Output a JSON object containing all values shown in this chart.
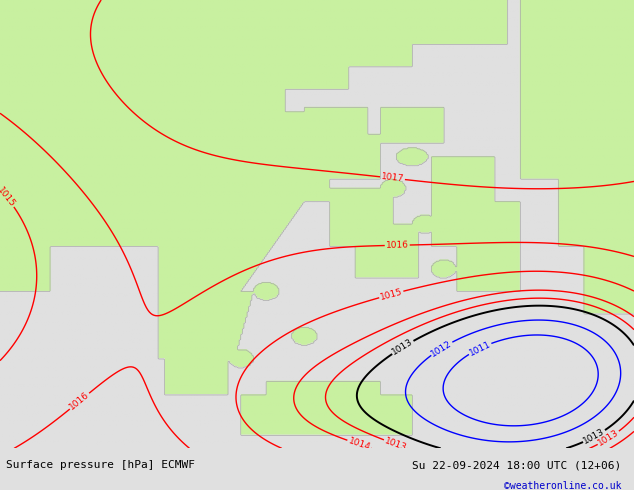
{
  "title_left": "Surface pressure [hPa] ECMWF",
  "title_right": "Su 22-09-2024 18:00 UTC (12+06)",
  "credit": "©weatheronline.co.uk",
  "bg_color": "#e0e0e0",
  "green_fill_color": "#c8f0a0",
  "fig_width": 6.34,
  "fig_height": 4.9,
  "dpi": 100,
  "bottom_bar_color": "#d0d0d0",
  "label_fontsize": 8,
  "credit_color": "#0000cc",
  "coast_color": "#aaaaaa",
  "red_levels": [
    1015,
    1016,
    1017
  ],
  "black_levels": [
    1013
  ],
  "blue_levels": [
    1011,
    1012
  ]
}
